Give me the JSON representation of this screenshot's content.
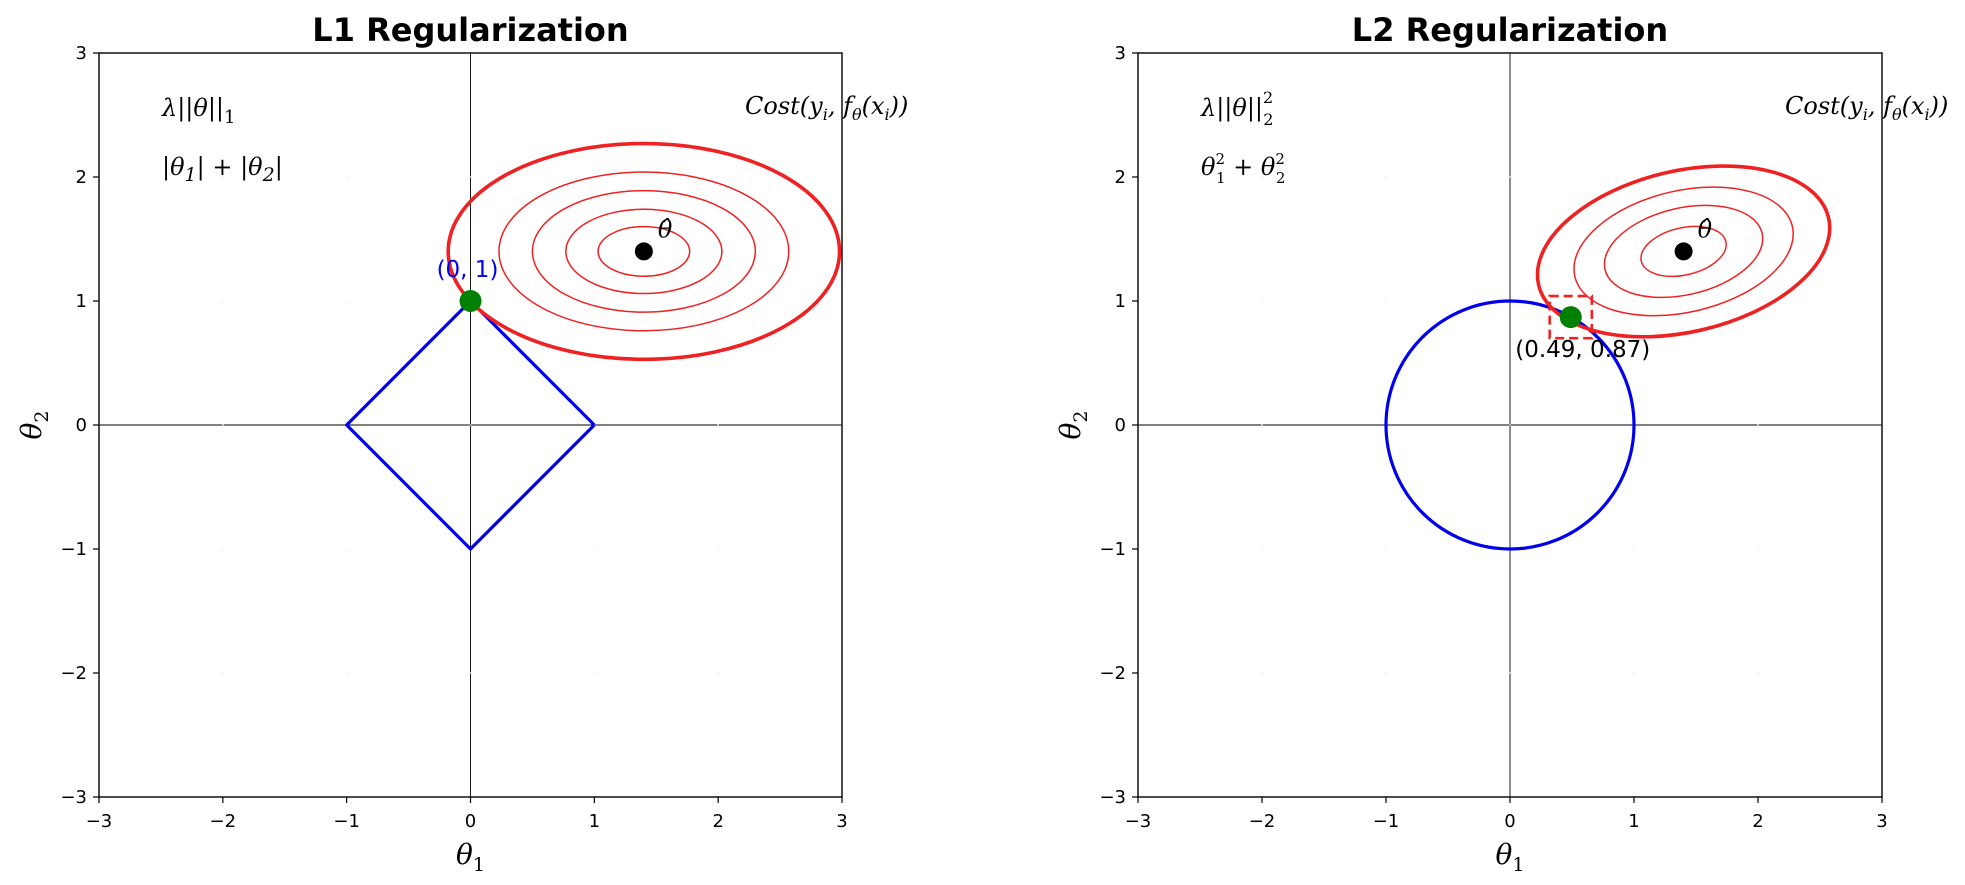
{
  "chart_data": [
    {
      "type": "line",
      "title": "L1 Regularization",
      "xlabel": "θ1",
      "ylabel": "θ2",
      "xlim": [
        -3,
        3
      ],
      "ylim": [
        -3,
        3
      ],
      "xticks": [
        "−3",
        "−2",
        "−1",
        "0",
        "1",
        "2",
        "3"
      ],
      "yticks": [
        "−3",
        "−2",
        "−1",
        "0",
        "1",
        "2",
        "3"
      ],
      "grid": false,
      "constraint": {
        "shape": "diamond",
        "color": "#0000ee",
        "points": [
          [
            1,
            0
          ],
          [
            0,
            1
          ],
          [
            -1,
            0
          ],
          [
            0,
            -1
          ],
          [
            1,
            0
          ]
        ]
      },
      "contours": {
        "color": "#ee2222",
        "center": [
          1.4,
          1.4
        ],
        "semi_axes": [
          [
            1.58,
            0.87
          ],
          [
            1.17,
            0.64
          ],
          [
            0.9,
            0.49
          ],
          [
            0.63,
            0.34
          ],
          [
            0.37,
            0.2
          ]
        ],
        "angle_deg": 0
      },
      "theta_hat": {
        "x": 1.4,
        "y": 1.4,
        "label": "θ̂"
      },
      "solution": {
        "x": 0,
        "y": 1,
        "label": "(0, 1)",
        "label_color": "#0000ee",
        "color": "#008000"
      },
      "penalty_label": {
        "text": "λ||θ||",
        "sub": "1"
      },
      "norm_label": {
        "t1": "|θ",
        "s1": "1",
        "mid": "| + |θ",
        "s2": "2",
        "end": "|"
      },
      "cost_label": {
        "pre": "Cost(y",
        "s1": "i",
        "mid": ", f",
        "s2": "θ",
        "mid2": "(x",
        "s3": "i",
        "end": "))"
      }
    },
    {
      "type": "line",
      "title": "L2 Regularization",
      "xlabel": "θ1",
      "ylabel": "θ2",
      "xlim": [
        -3,
        3
      ],
      "ylim": [
        -3,
        3
      ],
      "xticks": [
        "−3",
        "−2",
        "−1",
        "0",
        "1",
        "2",
        "3"
      ],
      "yticks": [
        "−3",
        "−2",
        "−1",
        "0",
        "1",
        "2",
        "3"
      ],
      "grid": false,
      "constraint": {
        "shape": "circle",
        "color": "#0000ee",
        "radius": 1
      },
      "contours": {
        "color": "#ee2222",
        "center": [
          1.4,
          1.4
        ],
        "semi_axes": [
          [
            1.2,
            0.65
          ],
          [
            0.9,
            0.49
          ],
          [
            0.65,
            0.35
          ],
          [
            0.35,
            0.19
          ]
        ],
        "angle_deg": 13
      },
      "theta_hat": {
        "x": 1.4,
        "y": 1.4,
        "label": "θ̂"
      },
      "solution": {
        "x": 0.49,
        "y": 0.87,
        "label": "(0.49, 0.87)",
        "label_color": "#000000",
        "color": "#008000"
      },
      "highlight_box": {
        "x": 0.49,
        "y": 0.87,
        "half_size": 0.17,
        "color": "#ee2222"
      },
      "penalty_label": {
        "text": "λ||θ||",
        "sub": "2",
        "sup": "2"
      },
      "norm_label": {
        "t1": "θ",
        "s1": "1",
        "p1": "2",
        "mid": " + θ",
        "s2": "2",
        "p2": "2"
      },
      "cost_label": {
        "pre": "Cost(y",
        "s1": "i",
        "mid": ", f",
        "s2": "θ",
        "mid2": "(x",
        "s3": "i",
        "end": "))"
      }
    }
  ]
}
